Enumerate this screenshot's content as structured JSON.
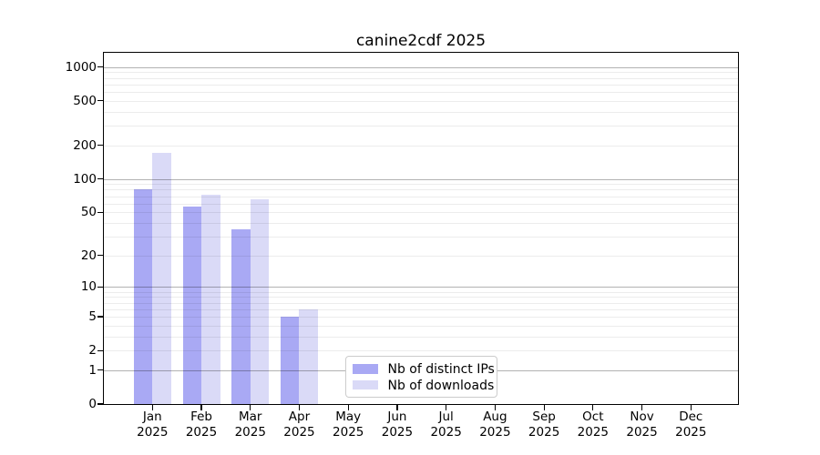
{
  "figure": {
    "background": "#ffffff",
    "text_color": "#000000"
  },
  "chart_data": {
    "type": "bar",
    "title": "canine2cdf 2025",
    "categories": [
      "Jan 2025",
      "Feb 2025",
      "Mar 2025",
      "Apr 2025",
      "May 2025",
      "Jun 2025",
      "Jul 2025",
      "Aug 2025",
      "Sep 2025",
      "Oct 2025",
      "Nov 2025",
      "Dec 2025"
    ],
    "series": [
      {
        "name": "Nb of distinct IPs",
        "color": "#a9a9f4",
        "values": [
          80,
          56,
          35,
          5,
          0,
          0,
          0,
          0,
          0,
          0,
          0,
          0
        ]
      },
      {
        "name": "Nb of downloads",
        "color": "#dadaf7",
        "values": [
          170,
          72,
          66,
          6,
          0,
          0,
          0,
          0,
          0,
          0,
          0,
          0
        ]
      }
    ],
    "xlabel": "",
    "ylabel": "",
    "yscale": "log1p",
    "ylim": [
      0,
      1300
    ],
    "yticks": [
      0,
      1,
      2,
      5,
      10,
      20,
      50,
      100,
      200,
      500,
      1000
    ],
    "ytick_labels": [
      "0",
      "1",
      "2",
      "5",
      "10",
      "20",
      "50",
      "100",
      "200",
      "500",
      "1000"
    ],
    "major_gridlines": [
      1,
      10,
      100,
      1000
    ],
    "minor_gridlines": [
      2,
      3,
      4,
      5,
      6,
      7,
      8,
      9,
      20,
      30,
      40,
      50,
      60,
      70,
      80,
      90,
      200,
      300,
      400,
      500,
      600,
      700,
      800,
      900
    ],
    "grid": "horizontal",
    "legend_position": "lower-center-inside",
    "legend_entries": [
      "Nb of distinct IPs",
      "Nb of downloads"
    ]
  }
}
